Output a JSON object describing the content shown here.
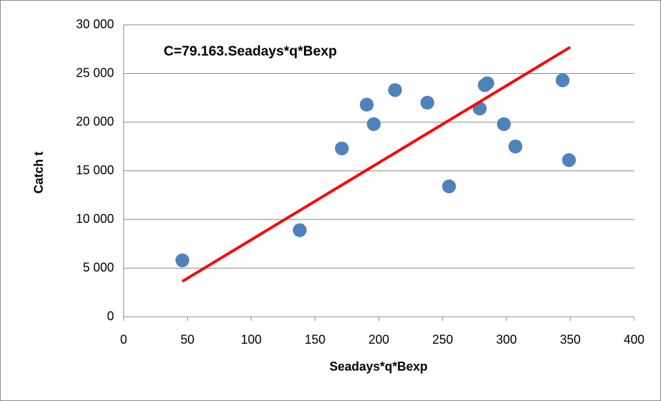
{
  "chart_data": {
    "type": "scatter",
    "annotation": "C=79.163.Seadays*q*Bexp",
    "xlabel": "Seadays*q*Bexp",
    "ylabel": "Catch t",
    "x": [
      46,
      138,
      171,
      190.5,
      196,
      212.7,
      238,
      255,
      279,
      283,
      285,
      298,
      307,
      344,
      349
    ],
    "y": [
      5800,
      8900,
      17300,
      21800,
      19800,
      23300,
      22000,
      13400,
      21400,
      23800,
      24000,
      19800,
      17500,
      24300,
      16100
    ],
    "color": "#4f81bd",
    "fit": {
      "x": [
        46,
        350
      ],
      "y": [
        3640,
        27710
      ],
      "color": "#ff0000"
    },
    "xlim": [
      0,
      400
    ],
    "xticks": [
      0,
      50,
      100,
      150,
      200,
      250,
      300,
      350,
      400
    ],
    "ylim": [
      0,
      30000
    ],
    "yticks": [
      0,
      {
        "value": 5000,
        "label": "5 000"
      },
      {
        "value": 10000,
        "label": "10 000"
      },
      {
        "value": 15000,
        "label": "15 000"
      },
      {
        "value": 20000,
        "label": "20 000"
      },
      {
        "value": 25000,
        "label": "25 000"
      },
      {
        "value": 30000,
        "label": "30 000"
      }
    ],
    "grid": true
  }
}
